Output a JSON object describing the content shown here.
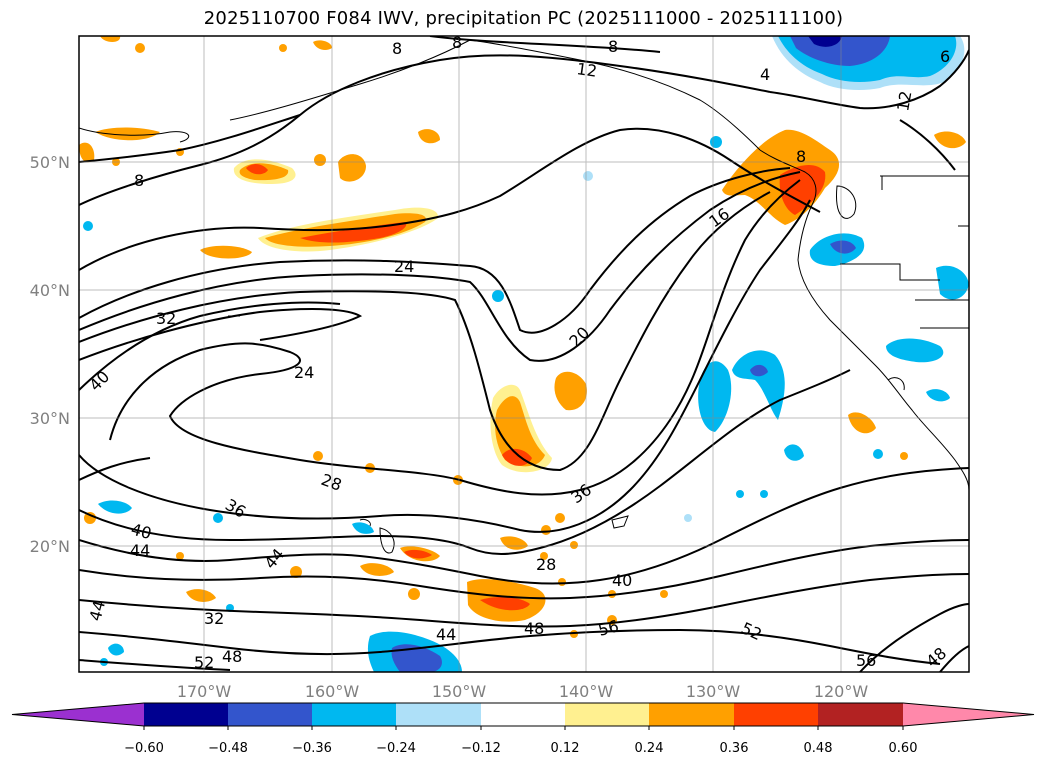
{
  "title": "2025110700 F084 IWV, precipitation PC (2025111000 - 2025111100)",
  "map": {
    "lat_labels": [
      "50°N",
      "40°N",
      "30°N",
      "20°N"
    ],
    "lon_labels": [
      "170°W",
      "160°W",
      "150°W",
      "140°W",
      "130°W",
      "120°W"
    ],
    "grid": true,
    "contour_labels": [
      "8",
      "8",
      "8",
      "12",
      "12",
      "4",
      "6",
      "8",
      "16",
      "24",
      "32",
      "24",
      "20",
      "40",
      "28",
      "36",
      "40",
      "44",
      "44",
      "44",
      "32",
      "28",
      "40",
      "36",
      "48",
      "56",
      "52",
      "52",
      "48",
      "56",
      "48",
      "8"
    ]
  },
  "colorbar": {
    "ticks": [
      "−0.60",
      "−0.48",
      "−0.36",
      "−0.24",
      "−0.12",
      "0.12",
      "0.24",
      "0.36",
      "0.48",
      "0.60"
    ],
    "colors": [
      "#9b30d0",
      "#000090",
      "#3355cc",
      "#00b8f0",
      "#aee0f8",
      "#ffffff",
      "#fff090",
      "#ffa000",
      "#ff4000",
      "#b22222",
      "#ff88aa"
    ]
  }
}
